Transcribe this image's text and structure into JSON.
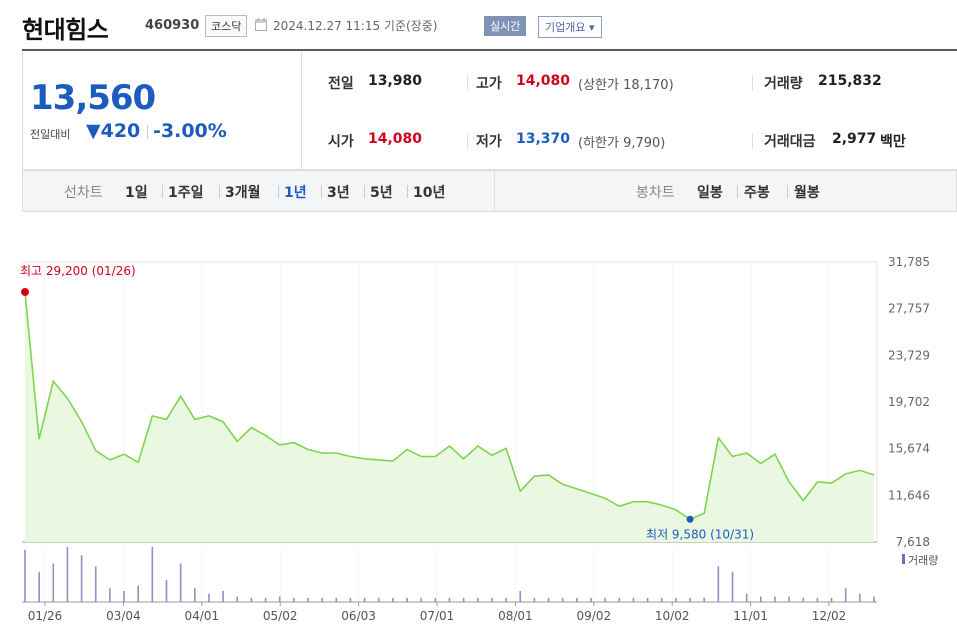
{
  "header": {
    "name": "현대힘스",
    "code": "460930",
    "market": "코스닥",
    "datetime": "2024.12.27 11:15 기준(장중)",
    "realtime_label": "실시간",
    "company_label": "기업개요",
    "company_arrow": "▾"
  },
  "price": {
    "current": "13,560",
    "prev_label": "전일대비",
    "change": "▼420",
    "pct": "-3.00%"
  },
  "info": {
    "prev_close_label": "전일",
    "prev_close": "13,980",
    "high_label": "고가",
    "high": "14,080",
    "upper_limit": "(상한가 18,170)",
    "volume_label": "거래량",
    "volume": "215,832",
    "open_label": "시가",
    "open": "14,080",
    "low_label": "저가",
    "low": "13,370",
    "lower_limit": "(하한가 9,790)",
    "amount_label": "거래대금",
    "amount": "2,977",
    "amount_unit": "백만"
  },
  "tabs": {
    "line_label": "선차트",
    "line_tabs": [
      "1일",
      "1주일",
      "3개월",
      "1년",
      "3년",
      "5년",
      "10년"
    ],
    "active_tab": "1년",
    "candle_label": "봉차트",
    "candle_tabs": [
      "일봉",
      "주봉",
      "월봉"
    ]
  },
  "chart_data": {
    "type": "area",
    "y_ticks": [
      "31,785",
      "27,757",
      "23,729",
      "19,702",
      "15,674",
      "11,646",
      "7,618"
    ],
    "ylim": [
      7618,
      31785
    ],
    "x_ticks": [
      "01/26",
      "03/04",
      "04/01",
      "05/02",
      "06/03",
      "07/01",
      "08/01",
      "09/02",
      "10/02",
      "11/01",
      "12/02"
    ],
    "high_annotation": "최고 29,200 (01/26)",
    "low_annotation": "최저 9,580 (10/31)",
    "high_value": 29200,
    "low_value": 9580,
    "high_index": 0,
    "low_index": 47,
    "volume_legend": "거래량",
    "line_color": "#7fd44e",
    "area_color": "#eaf8e1",
    "values": [
      29200,
      16500,
      21500,
      20000,
      18000,
      15500,
      14700,
      15200,
      14500,
      18500,
      18200,
      20200,
      18200,
      18500,
      18000,
      16300,
      17500,
      16800,
      16000,
      16200,
      15600,
      15300,
      15300,
      15000,
      14800,
      14700,
      14600,
      15600,
      15000,
      15000,
      15900,
      14800,
      15900,
      15100,
      15700,
      12000,
      13300,
      13400,
      12600,
      12200,
      11800,
      11400,
      10700,
      11100,
      11100,
      10800,
      10400,
      9580,
      10100,
      16600,
      15000,
      15300,
      14400,
      15200,
      12800,
      11200,
      12800,
      12700,
      13500,
      13800,
      13400
    ],
    "volumes": [
      38,
      22,
      28,
      40,
      34,
      26,
      10,
      8,
      12,
      40,
      16,
      28,
      10,
      6,
      8,
      4,
      3,
      3,
      4,
      3,
      3,
      3,
      3,
      3,
      3,
      3,
      3,
      3,
      3,
      3,
      3,
      3,
      3,
      3,
      3,
      8,
      3,
      3,
      3,
      3,
      3,
      3,
      3,
      3,
      3,
      3,
      3,
      3,
      3,
      26,
      22,
      6,
      4,
      4,
      4,
      3,
      3,
      3,
      10,
      6,
      4
    ]
  }
}
